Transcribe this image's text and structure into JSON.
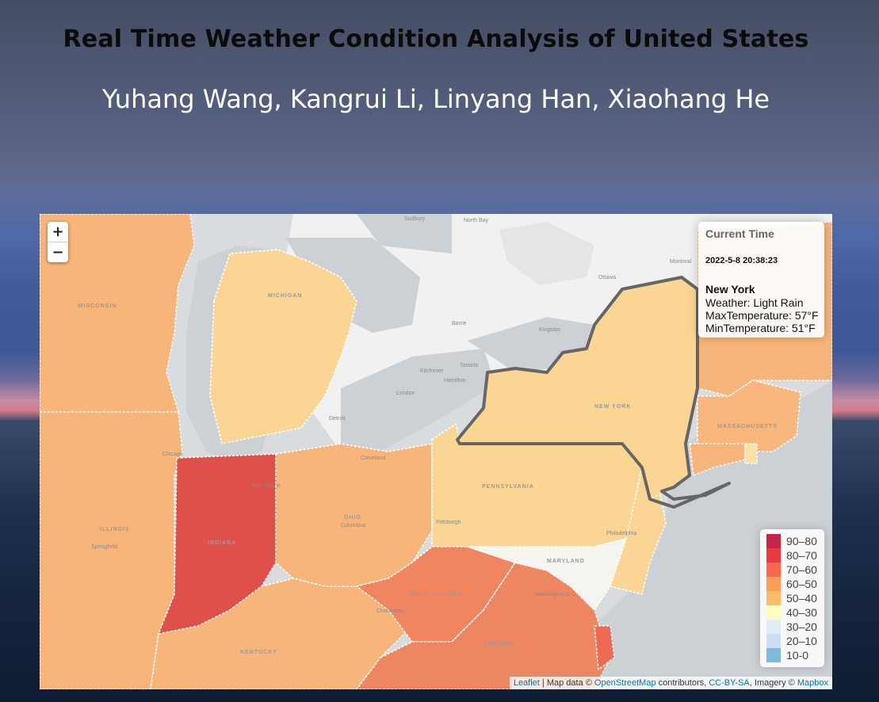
{
  "header": {
    "title": "Real Time Weather Condition Analysis of United States",
    "authors": "Yuhang Wang, Kangrui Li, Linyang Han, Xiaohang He"
  },
  "map": {
    "zoom_in_label": "+",
    "zoom_out_label": "−",
    "info": {
      "heading": "Current Time",
      "time": "2022-5-8 20:38:23",
      "state": "New York",
      "weather": "Weather: Light Rain",
      "max_temp": "MaxTemperature: 57°F",
      "min_temp": "MinTemperature: 51°F"
    },
    "legend": [
      {
        "label": "90–80",
        "color": "#bd0026"
      },
      {
        "label": "80–70",
        "color": "#e31a1c"
      },
      {
        "label": "70–60",
        "color": "#fc4e2a"
      },
      {
        "label": "60–50",
        "color": "#fd8d3c"
      },
      {
        "label": "50–40",
        "color": "#feb24c"
      },
      {
        "label": "40–30",
        "color": "#ffffb2"
      },
      {
        "label": "30–20",
        "color": "#deebf7"
      },
      {
        "label": "20–10",
        "color": "#c6dbef"
      },
      {
        "label": "10-0",
        "color": "#6baed6"
      }
    ],
    "states": [
      {
        "name": "Wisconsin",
        "label": "WISCONSIN",
        "band": "60–50"
      },
      {
        "name": "Michigan",
        "label": "MICHIGAN",
        "band": "50–40"
      },
      {
        "name": "Illinois",
        "label": "ILLINOIS",
        "band": "60–50"
      },
      {
        "name": "Indiana",
        "label": "INDIANA",
        "band": "80–70"
      },
      {
        "name": "Ohio",
        "label": "OHIO",
        "band": "60–50"
      },
      {
        "name": "Pennsylvania",
        "label": "PENNSYLVANIA",
        "band": "50–40"
      },
      {
        "name": "New York",
        "label": "NEW YORK",
        "band": "50–40"
      },
      {
        "name": "Kentucky",
        "label": "KENTUCKY",
        "band": "60–50"
      },
      {
        "name": "West Virginia",
        "label": "WEST VIRGINIA",
        "band": "70–60"
      },
      {
        "name": "Virginia",
        "label": "VIRGINIA",
        "band": "70–60"
      },
      {
        "name": "Maryland",
        "label": "MARYLAND",
        "band": "40–30"
      },
      {
        "name": "Massachusetts",
        "label": "MASSACHUSETTS",
        "band": "60–50"
      }
    ],
    "places": [
      "Sudbury",
      "North Bay",
      "Ottawa",
      "Montreal",
      "Toronto",
      "Hamilton",
      "Kitchener",
      "London",
      "Detroit",
      "Chicago",
      "Cleveland",
      "Pittsburgh",
      "Philadelphia",
      "Washington D.C.",
      "Columbus",
      "Fort Wayne",
      "Springfield",
      "Kingston",
      "Barrie",
      "Charleston"
    ],
    "attribution": {
      "leaflet": "Leaflet",
      "text1": " | Map data © ",
      "osm": "OpenStreetMap",
      "text2": " contributors, ",
      "license": "CC-BY-SA",
      "text3": ", Imagery © ",
      "mapbox": "Mapbox"
    }
  }
}
